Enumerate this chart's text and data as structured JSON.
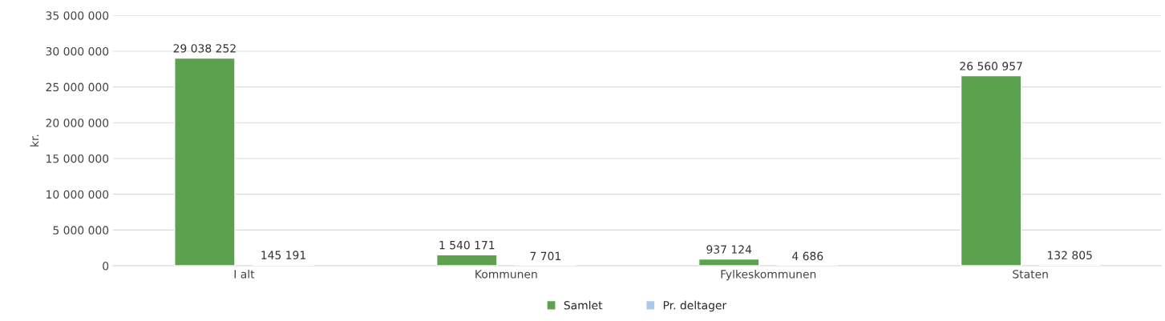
{
  "chart_data": {
    "type": "bar",
    "ylabel": "kr.",
    "categories": [
      "I alt",
      "Kommunen",
      "Fylkeskommunen",
      "Staten"
    ],
    "series": [
      {
        "name": "Samlet",
        "color": "#5ba14e",
        "values": [
          29038252,
          1540171,
          937124,
          26560957
        ],
        "value_labels": [
          "29 038 252",
          "1 540 171",
          "937 124",
          "26 560 957"
        ]
      },
      {
        "name": "Pr. deltager",
        "color": "#a9c9ec",
        "values": [
          145191,
          7701,
          4686,
          132805
        ],
        "value_labels": [
          "145 191",
          "7 701",
          "4 686",
          "132 805"
        ]
      }
    ],
    "ylim": [
      0,
      35000000
    ],
    "yticks": [
      {
        "value": 0,
        "label": "0"
      },
      {
        "value": 5000000,
        "label": "5 000 000"
      },
      {
        "value": 10000000,
        "label": "10 000 000"
      },
      {
        "value": 15000000,
        "label": "15 000 000"
      },
      {
        "value": 20000000,
        "label": "20 000 000"
      },
      {
        "value": 25000000,
        "label": "25 000 000"
      },
      {
        "value": 30000000,
        "label": "30 000 000"
      },
      {
        "value": 35000000,
        "label": "35 000 000"
      }
    ],
    "grid": "y",
    "legend": "bottom"
  }
}
